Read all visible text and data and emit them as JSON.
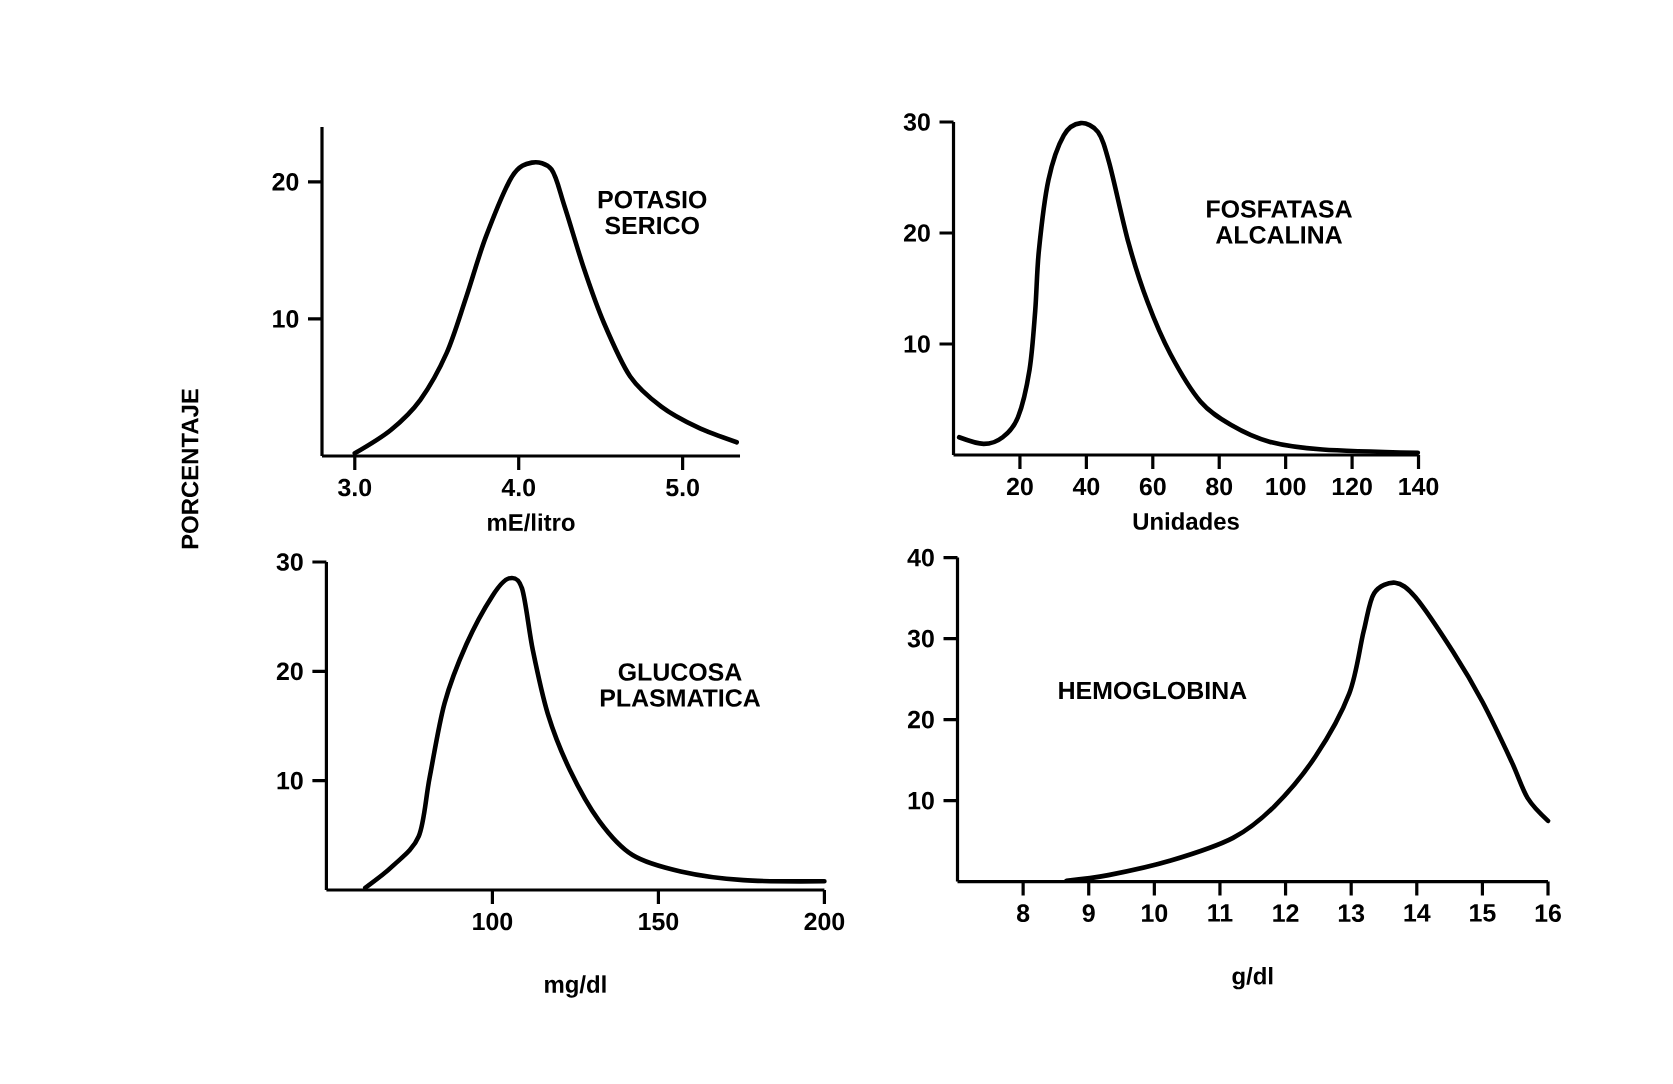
{
  "chart_data": [
    {
      "type": "line",
      "title": "POTASIO SERICO",
      "xlabel": "mE/litro",
      "ylabel": "PORCENTAJE",
      "color": "#000000",
      "x": [
        3.0,
        3.22,
        3.4,
        3.56,
        3.68,
        3.8,
        3.96,
        4.08,
        4.2,
        4.28,
        4.4,
        4.52,
        4.68,
        4.87,
        5.09,
        5.33
      ],
      "values": [
        0.2,
        1.9,
        4.1,
        7.5,
        11.6,
        16.0,
        20.4,
        21.4,
        20.9,
        18.2,
        13.6,
        9.7,
        5.8,
        3.6,
        2.1,
        1.0
      ],
      "xlim": [
        2.8,
        5.35
      ],
      "ylim": [
        0,
        24
      ],
      "xticks": [
        {
          "value": 3,
          "label": "3.0"
        },
        {
          "value": 4,
          "label": "4.0"
        },
        {
          "value": 5,
          "label": "5.0"
        }
      ],
      "yticks": [
        10,
        20
      ]
    },
    {
      "type": "line",
      "title": "FOSFATASA ALCALINA",
      "xlabel": "Unidades",
      "color": "#000000",
      "x": [
        1.7,
        9.1,
        14.8,
        19.4,
        22.9,
        24.6,
        25.7,
        28.6,
        33.2,
        38.3,
        43.5,
        46.9,
        52.7,
        58.4,
        65.3,
        74.4,
        83.6,
        95.1,
        111.1,
        139.8
      ],
      "values": [
        1.6,
        1.0,
        1.6,
        3.4,
        7.7,
        13.0,
        18.4,
        24.8,
        28.8,
        29.9,
        29.1,
        26.3,
        19.1,
        13.8,
        9.1,
        4.8,
        2.7,
        1.2,
        0.5,
        0.2
      ],
      "xlim": [
        0,
        140
      ],
      "ylim": [
        0,
        30
      ],
      "xticks": [
        20,
        40,
        60,
        80,
        100,
        120,
        140
      ],
      "yticks": [
        10,
        20,
        30
      ]
    },
    {
      "type": "line",
      "title": "GLUCOSA PLASMATICA",
      "xlabel": "mg/dl",
      "color": "#000000",
      "x": [
        61.7,
        70,
        77.8,
        81.1,
        85.6,
        92.2,
        100,
        105,
        108.9,
        112.2,
        116.7,
        123.3,
        132.2,
        142.2,
        156.7,
        175.6,
        200
      ],
      "values": [
        0.2,
        2.2,
        4.9,
        10.3,
        17.1,
        22.5,
        26.9,
        28.5,
        27.6,
        21.9,
        16.1,
        11.0,
        6.3,
        3.2,
        1.7,
        0.9,
        0.8
      ],
      "xlim": [
        50,
        200
      ],
      "ylim": [
        0,
        30
      ],
      "xticks": [
        100,
        150,
        200
      ],
      "yticks": [
        10,
        20,
        30
      ]
    },
    {
      "type": "line",
      "title": "HEMOGLOBINA",
      "xlabel": "g/dl",
      "color": "#000000",
      "x": [
        8.66,
        9.3,
        10.25,
        11.2,
        11.83,
        12.46,
        12.97,
        13.19,
        13.35,
        13.67,
        13.98,
        14.55,
        15.0,
        15.44,
        15.69,
        16.0
      ],
      "values": [
        0.1,
        0.8,
        2.6,
        5.4,
        9.3,
        15.5,
        23.2,
        30.9,
        35.6,
        36.9,
        35.1,
        28.4,
        22.2,
        14.9,
        10.3,
        7.5
      ],
      "xlim": [
        7,
        16
      ],
      "ylim": [
        0,
        40
      ],
      "xticks": [
        8,
        9,
        10,
        11,
        12,
        13,
        14,
        15,
        16
      ],
      "yticks": [
        10,
        20,
        30,
        40
      ]
    }
  ]
}
